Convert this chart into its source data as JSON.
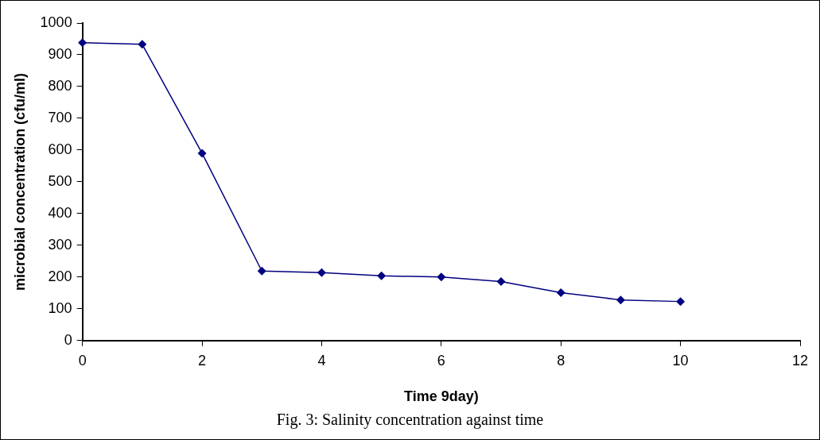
{
  "chart_data": {
    "type": "line",
    "xlabel": "Time 9day)",
    "ylabel": "microbial concentration (cfu/ml)",
    "x": [
      0,
      1,
      2,
      3,
      4,
      5,
      6,
      7,
      8,
      9,
      10
    ],
    "series": [
      {
        "color": "#000080",
        "values": [
          938,
          933,
          590,
          219,
          214,
          204,
          200,
          186,
          151,
          128,
          123
        ]
      }
    ],
    "xlim": [
      0,
      12
    ],
    "xticks": [
      0,
      2,
      4,
      6,
      8,
      10,
      12
    ],
    "ylim": [
      0,
      1000
    ],
    "yticks": [
      0,
      100,
      200,
      300,
      400,
      500,
      600,
      700,
      800,
      900,
      1000
    ],
    "grid": false,
    "legend": false,
    "marker": "diamond",
    "line_style": "solid",
    "annotations": [
      "Fig. 3: Salinity concentration against time"
    ]
  }
}
